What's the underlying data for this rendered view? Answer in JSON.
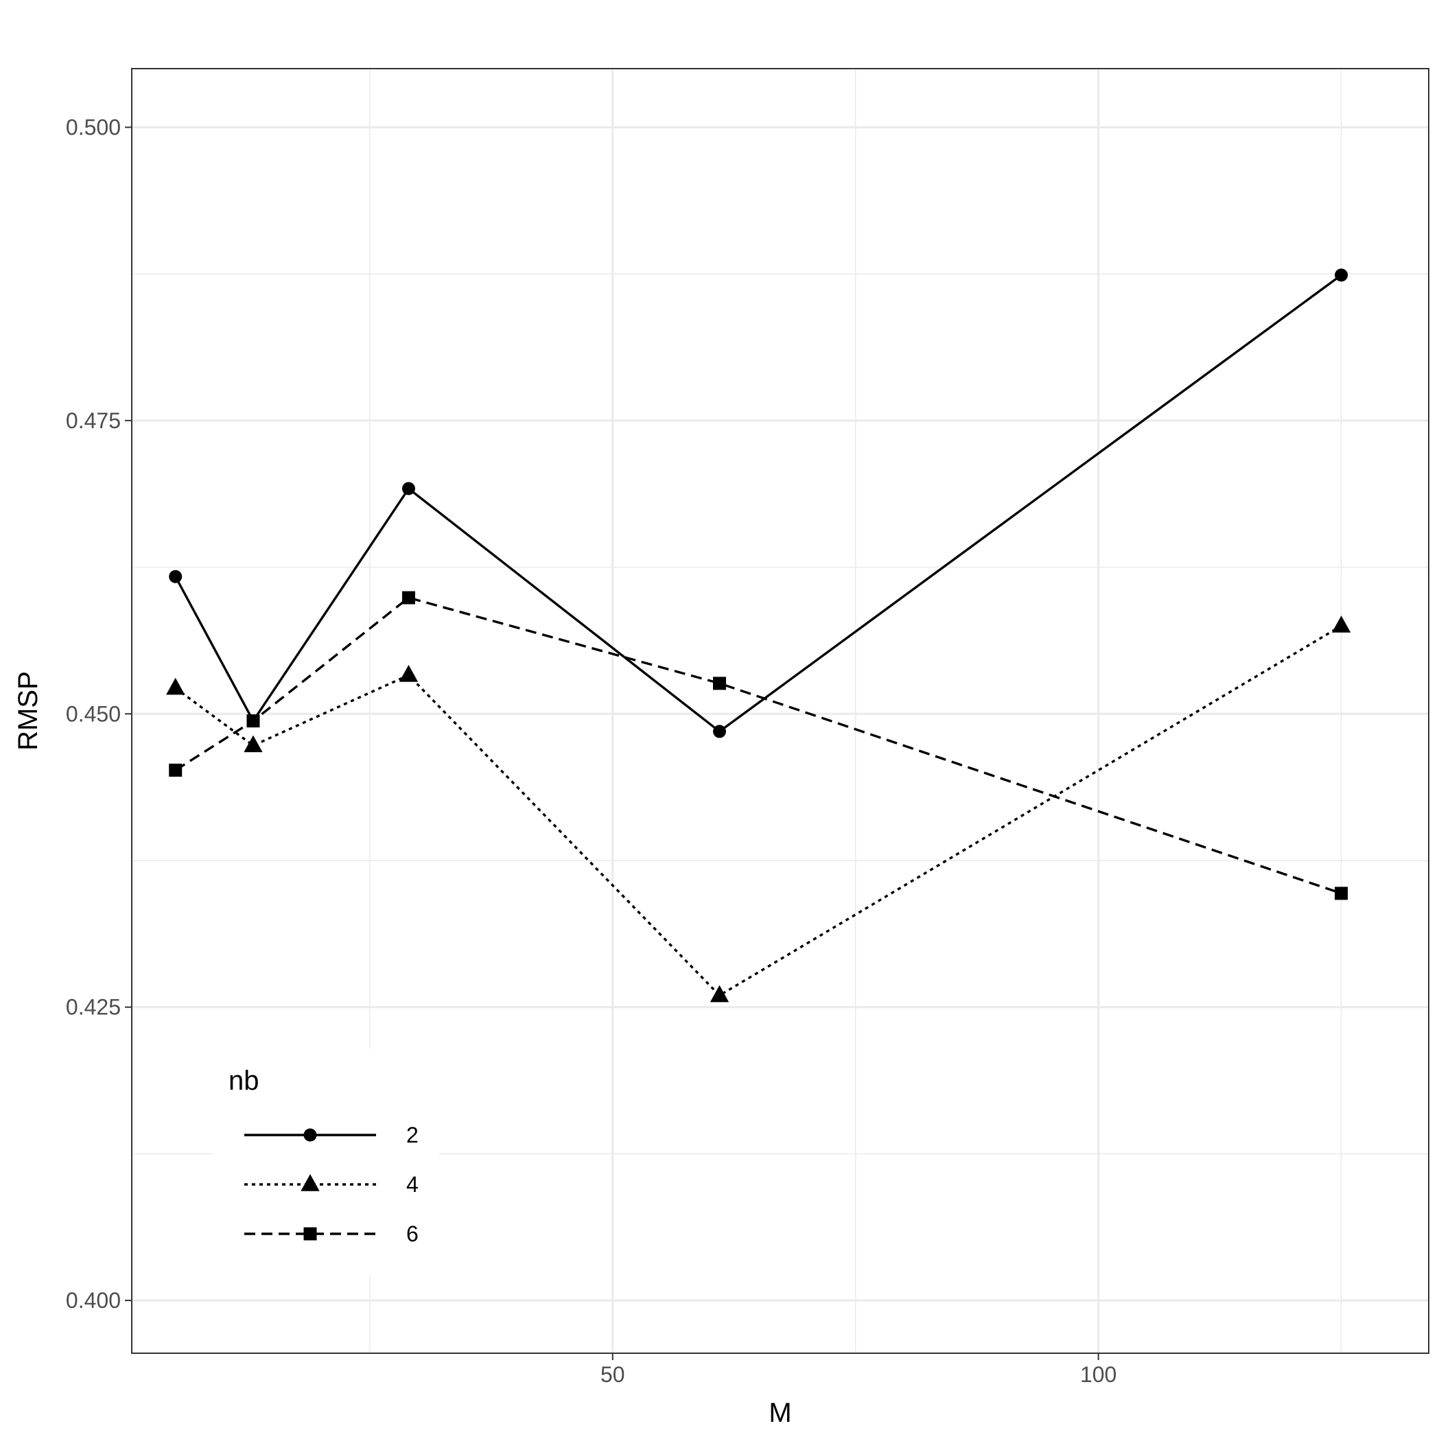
{
  "chart_data": {
    "type": "line",
    "title": "",
    "xlabel": "M",
    "ylabel": "RMSP",
    "xlim": [
      0.5,
      134
    ],
    "ylim": [
      0.3955,
      0.505
    ],
    "x_ticks": [
      50,
      100
    ],
    "x_tick_labels": [
      "50",
      "100"
    ],
    "y_ticks": [
      0.4,
      0.425,
      0.45,
      0.475,
      0.5
    ],
    "y_tick_labels": [
      "0.400",
      "0.425",
      "0.450",
      "0.475",
      "0.500"
    ],
    "grid": true,
    "legend": {
      "title": "nb",
      "position": "bottom-left"
    },
    "x": [
      5,
      13,
      29,
      61,
      125
    ],
    "series": [
      {
        "name": "2",
        "values": [
          0.4617,
          0.4494,
          0.4692,
          0.4485,
          0.4874
        ],
        "line_style": "solid",
        "marker": "circle"
      },
      {
        "name": "4",
        "values": [
          0.4522,
          0.4473,
          0.4533,
          0.426,
          0.4575
        ],
        "line_style": "dotted",
        "marker": "triangle"
      },
      {
        "name": "6",
        "values": [
          0.4452,
          0.4494,
          0.4599,
          0.4526,
          0.4347
        ],
        "line_style": "dashed",
        "marker": "square"
      }
    ],
    "colors": {
      "line": "#000000",
      "grid": "#ebebeb",
      "panel_border": "#333333"
    }
  }
}
